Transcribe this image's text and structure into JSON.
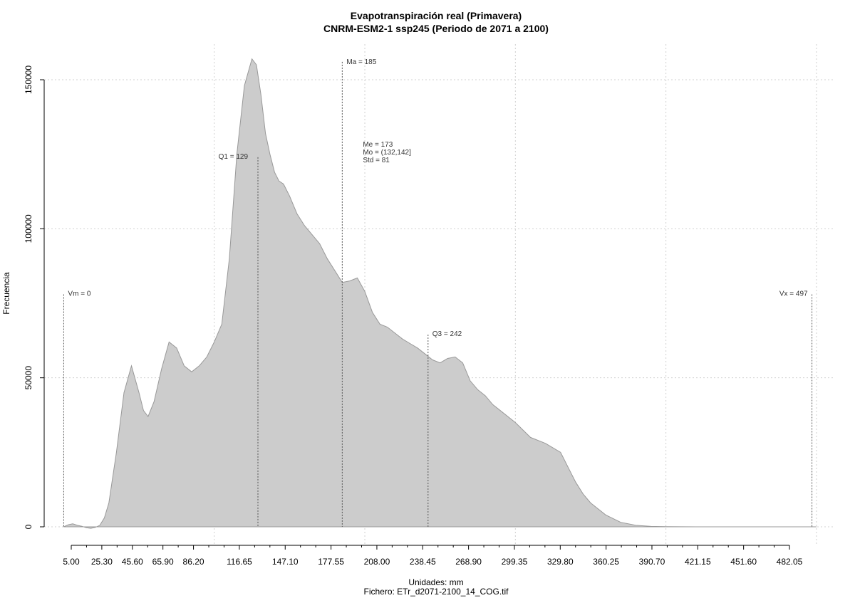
{
  "chart_data": {
    "type": "area",
    "title": "Evapotranspiración real (Primavera)",
    "subtitle": "CNRM-ESM2-1 ssp245 (Periodo de 2071 a 2100)",
    "xlabel": "Unidades: mm",
    "ylabel": "Frecuencia",
    "file_label": "Fichero: ETr_d2071-2100_14_COG.tif",
    "xlim": [
      -5,
      515
    ],
    "ylim": [
      -5000,
      160000
    ],
    "x_ticks": [
      5.0,
      25.3,
      45.6,
      65.9,
      86.2,
      116.65,
      147.1,
      177.55,
      208.0,
      238.45,
      268.9,
      299.35,
      329.8,
      360.25,
      390.7,
      421.15,
      451.6,
      482.05
    ],
    "x_tick_labels": [
      "5.00",
      "25.30",
      "45.60",
      "65.90",
      "86.20",
      "116.65",
      "147.10",
      "177.55",
      "208.00",
      "238.45",
      "268.90",
      "299.35",
      "329.80",
      "360.25",
      "390.70",
      "421.15",
      "451.60",
      "482.05"
    ],
    "y_ticks": [
      0,
      50000,
      100000,
      150000
    ],
    "y_tick_labels": [
      "0",
      "50000",
      "100000",
      "150000"
    ],
    "grid": true,
    "fill_color": "#cccccc",
    "line_color": "#999999",
    "series": [
      {
        "x": [
          0,
          3,
          6,
          9,
          12,
          15,
          18,
          21,
          24,
          27,
          30,
          35,
          40,
          45,
          50,
          53,
          56,
          60,
          65,
          70,
          75,
          80,
          85,
          90,
          95,
          100,
          105,
          110,
          115,
          120,
          125,
          128,
          131,
          134,
          137,
          140,
          143,
          146,
          150,
          155,
          160,
          165,
          170,
          175,
          180,
          185,
          190,
          195,
          200,
          205,
          210,
          215,
          220,
          225,
          230,
          235,
          240,
          245,
          250,
          255,
          260,
          265,
          270,
          275,
          280,
          285,
          290,
          300,
          310,
          320,
          330,
          335,
          340,
          345,
          350,
          360,
          370,
          380,
          390,
          400,
          410,
          420,
          430,
          440,
          460,
          480,
          500
        ],
        "y": [
          0,
          700,
          1000,
          500,
          200,
          -300,
          -500,
          -200,
          500,
          3000,
          8000,
          25000,
          45000,
          54000,
          45000,
          39000,
          37000,
          42000,
          53000,
          62000,
          60000,
          54000,
          52000,
          54000,
          57000,
          62000,
          68000,
          90000,
          125000,
          148000,
          157000,
          155000,
          145000,
          132000,
          125000,
          119000,
          116000,
          115000,
          111000,
          105000,
          101000,
          98000,
          95000,
          90000,
          86000,
          82000,
          82500,
          83500,
          79000,
          72000,
          68000,
          67000,
          65000,
          63000,
          61500,
          60000,
          58000,
          56000,
          55000,
          56500,
          57000,
          55000,
          49000,
          46000,
          44000,
          41000,
          39000,
          35000,
          30000,
          28000,
          25000,
          20000,
          15000,
          11000,
          8000,
          4000,
          1500,
          500,
          150,
          50,
          20,
          10,
          5,
          0,
          0,
          0,
          0
        ]
      }
    ],
    "annotations": [
      {
        "label": "Vm = 0",
        "x": 0,
        "y": 78000
      },
      {
        "label": "Q1 = 129",
        "x": 129,
        "y": 124000
      },
      {
        "label": "Ma = 185",
        "x": 185,
        "y": 156000
      },
      {
        "label": "Q3 = 242",
        "x": 242,
        "y": 64500
      },
      {
        "label": "Vx = 497",
        "x": 497,
        "y": 78000
      }
    ],
    "stats_lines": [
      "Me = 173",
      "Mo = (132,142]",
      "Std = 81"
    ]
  }
}
